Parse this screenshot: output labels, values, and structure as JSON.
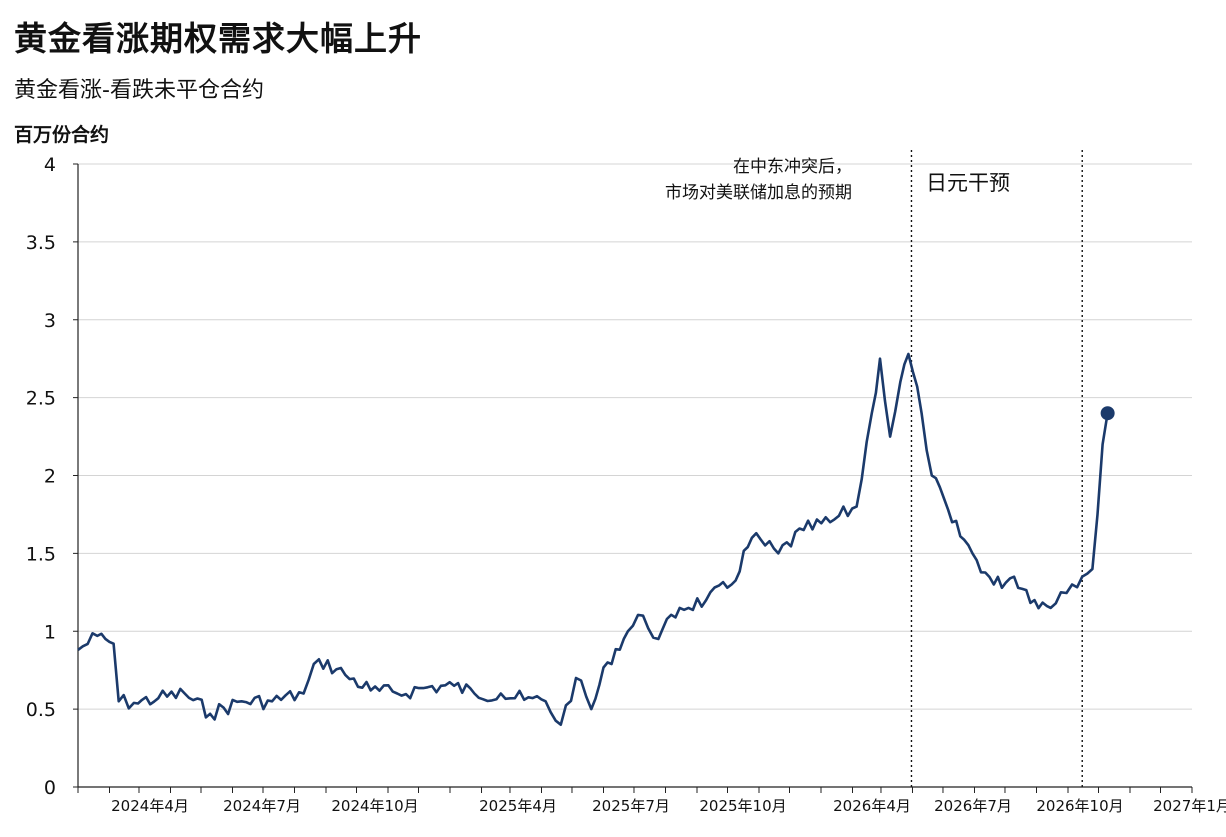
{
  "header": {
    "title": "黄金看涨期权需求大幅上升",
    "subtitle": "黄金看涨-看跌未平仓合约",
    "unit": "百万份合约"
  },
  "chart_data": {
    "type": "line",
    "title": "黄金看涨期权需求大幅上升",
    "subtitle": "黄金看涨-看跌未平仓合约",
    "ylabel": "百万份合约",
    "xlabel": "",
    "ylim": [
      0,
      4
    ],
    "yticks": [
      "0",
      "0.5",
      "1",
      "1.5",
      "2",
      "2.5",
      "3",
      "3.5",
      "4"
    ],
    "xlim": [
      "2024-01-01",
      "2027-01-01"
    ],
    "xticks": [
      "2024年4月",
      "2024年7月",
      "2024年10月",
      "2025年4月",
      "2025年7月",
      "2025年10月",
      "2026年4月",
      "2026年7月",
      "2026年10月",
      "2027年1月"
    ],
    "grid": "horizontal",
    "line_color": "#1b3a6b",
    "series": [
      {
        "name": "",
        "x": [
          "2024-01-01",
          "2024-01-20",
          "2024-02-05",
          "2024-02-10",
          "2024-02-25",
          "2024-03-20",
          "2024-04-15",
          "2024-05-10",
          "2024-06-10",
          "2024-07-10",
          "2024-08-10",
          "2024-08-25",
          "2024-09-20",
          "2024-10-15",
          "2024-11-10",
          "2024-12-10",
          "2025-01-05",
          "2025-01-25",
          "2025-02-20",
          "2025-03-15",
          "2025-04-05",
          "2025-04-20",
          "2025-05-05",
          "2025-05-20",
          "2025-06-05",
          "2025-06-25",
          "2025-07-10",
          "2025-07-25",
          "2025-08-15",
          "2025-09-10",
          "2025-10-05",
          "2025-10-25",
          "2025-11-20",
          "2025-12-15",
          "2026-01-10",
          "2026-02-05",
          "2026-02-20",
          "2026-02-28",
          "2026-03-10",
          "2026-03-20",
          "2026-03-28",
          "2026-04-10",
          "2026-04-20",
          "2026-05-10",
          "2026-05-30",
          "2026-06-20",
          "2026-07-10",
          "2026-07-30",
          "2026-08-15",
          "2026-08-25",
          "2026-09-05",
          "2026-09-15",
          "2026-09-25",
          "2026-10-05",
          "2026-10-10"
        ],
        "values": [
          0.88,
          0.97,
          0.92,
          0.55,
          0.54,
          0.57,
          0.6,
          0.47,
          0.55,
          0.55,
          0.6,
          0.82,
          0.72,
          0.62,
          0.6,
          0.64,
          0.65,
          0.6,
          0.6,
          0.56,
          0.55,
          0.4,
          0.7,
          0.5,
          0.8,
          1.0,
          1.1,
          0.95,
          1.15,
          1.2,
          1.3,
          1.6,
          1.5,
          1.65,
          1.7,
          1.8,
          2.4,
          2.75,
          2.25,
          2.6,
          2.78,
          2.4,
          2.0,
          1.7,
          1.5,
          1.3,
          1.35,
          1.2,
          1.15,
          1.25,
          1.3,
          1.35,
          1.4,
          2.2,
          2.4
        ]
      }
    ],
    "end_point": {
      "x": "2026-10-10",
      "value": 2.4
    },
    "annotations": [
      {
        "text_lines": [
          "在中东冲突后，",
          "市场对美联储加息的预期"
        ],
        "x_line": "2026-03-31"
      },
      {
        "text_lines": [
          "日元干预"
        ],
        "x_line": "2026-09-15"
      }
    ]
  }
}
